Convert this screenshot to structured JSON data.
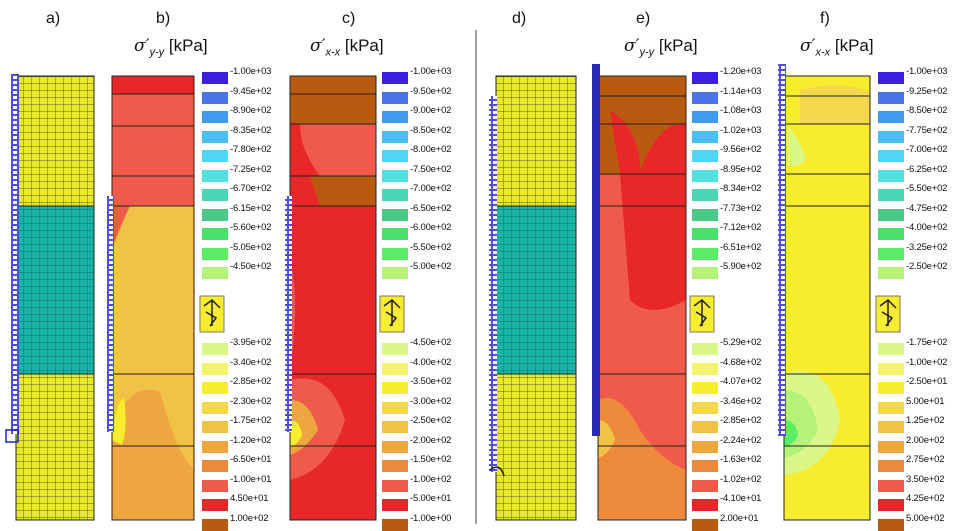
{
  "panels": [
    {
      "label": "a)"
    },
    {
      "label": "b)"
    },
    {
      "label": "c)"
    },
    {
      "label": "d)"
    },
    {
      "label": "e)"
    },
    {
      "label": "f)"
    }
  ],
  "titles": {
    "b": {
      "sym": "σ′",
      "sub": "y-y",
      "unit": "[kPa]"
    },
    "c": {
      "sym": "σ′",
      "sub": "x-x",
      "unit": "[kPa]"
    },
    "e": {
      "sym": "σ′",
      "sub": "y-y",
      "unit": "[kPa]"
    },
    "f": {
      "sym": "σ′",
      "sub": "x-x",
      "unit": "[kPa]"
    }
  },
  "legends": {
    "b": {
      "top": [
        "-1.00e+03",
        "-9.45e+02",
        "-8.90e+02",
        "-8.35e+02",
        "-7.80e+02",
        "-7.25e+02",
        "-6.70e+02",
        "-6.15e+02",
        "-5.60e+02",
        "-5.05e+02",
        "-4.50e+02"
      ],
      "bottom": [
        "-3.95e+02",
        "-3.40e+02",
        "-2.85e+02",
        "-2.30e+02",
        "-1.75e+02",
        "-1.20e+02",
        "-6.50e+01",
        "-1.00e+01",
        "4.50e+01",
        "1.00e+02"
      ]
    },
    "c": {
      "top": [
        "-1.00e+03",
        "-9.50e+02",
        "-9.00e+02",
        "-8.50e+02",
        "-8.00e+02",
        "-7.50e+02",
        "-7.00e+02",
        "-6.50e+02",
        "-6.00e+02",
        "-5.50e+02",
        "-5.00e+02"
      ],
      "bottom": [
        "-4.50e+02",
        "-4.00e+02",
        "-3.50e+02",
        "-3.00e+02",
        "-2.50e+02",
        "-2.00e+02",
        "-1.50e+02",
        "-1.00e+02",
        "-5.00e+01",
        "-1.00e+00"
      ]
    },
    "e": {
      "top": [
        "-1.20e+03",
        "-1.14e+03",
        "-1.08e+03",
        "-1.02e+03",
        "-9.56e+02",
        "-8.95e+02",
        "-8.34e+02",
        "-7.73e+02",
        "-7.12e+02",
        "-6.51e+02",
        "-5.90e+02"
      ],
      "bottom": [
        "-5.29e+02",
        "-4.68e+02",
        "-4.07e+02",
        "-3.46e+02",
        "-2.85e+02",
        "-2.24e+02",
        "-1.63e+02",
        "-1.02e+02",
        "-4.10e+01",
        "2.00e+01"
      ]
    },
    "f": {
      "top": [
        "-1.00e+03",
        "-9.25e+02",
        "-8.50e+02",
        "-7.75e+02",
        "-7.00e+02",
        "-6.25e+02",
        "-5.50e+02",
        "-4.75e+02",
        "-4.00e+02",
        "-3.25e+02",
        "-2.50e+02"
      ],
      "bottom": [
        "-1.75e+02",
        "-1.00e+02",
        "-2.50e+01",
        "5.00e+01",
        "1.25e+02",
        "2.00e+02",
        "2.75e+02",
        "3.50e+02",
        "4.25e+02",
        "5.00e+02"
      ]
    }
  },
  "colors": {
    "scale_top": [
      "#3a1fe0",
      "#4a74e8",
      "#3f9af0",
      "#48c0f2",
      "#4fd6f4",
      "#52e0e0",
      "#4cd6b8",
      "#4cc888",
      "#47e06a",
      "#5ced66",
      "#b4f27a"
    ],
    "scale_bottom": [
      "#dbf787",
      "#f2f56a",
      "#f8ec2f",
      "#f2d84a",
      "#f0c247",
      "#eea640",
      "#ee8a3c",
      "#f05a4a",
      "#e82828",
      "#b85a10"
    ],
    "mesh_yellow": "#e8e82a",
    "mesh_teal": "#18b4a6",
    "wall_blue": "#2222cc"
  },
  "legend_icon": "excavation-model-icon"
}
